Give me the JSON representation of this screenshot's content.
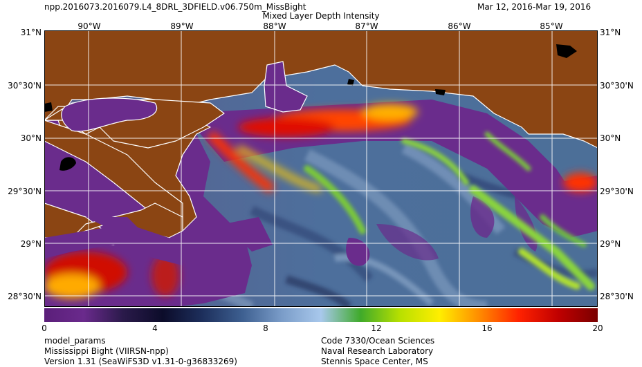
{
  "header": {
    "product": "npp.2016073.2016079.L4_8DRL_3DFIELD.v06.750m_MissBight",
    "title": "Mixed Layer Depth Intensity",
    "date_range": "Mar 12, 2016-Mar 19, 2016"
  },
  "map": {
    "longitudes": [
      "90°W",
      "89°W",
      "88°W",
      "87°W",
      "86°W",
      "85°W"
    ],
    "latitudes": [
      "31°N",
      "30°30'N",
      "30°N",
      "29°30'N",
      "29°N",
      "28°30'N"
    ],
    "colors": {
      "land": "#8b4513",
      "grid": "#ffffff",
      "coast": "#ffffff",
      "lake": "#000000"
    }
  },
  "colorbar": {
    "ticks": [
      "0",
      "4",
      "8",
      "12",
      "16",
      "20"
    ],
    "min": 0,
    "max": 20,
    "stops": [
      "#5b1f7a",
      "#6a2a8c",
      "#2a1a4a",
      "#0c0c2a",
      "#1d2f5c",
      "#3d5f90",
      "#7a9cc8",
      "#a8c8ec",
      "#3faa2a",
      "#b8e000",
      "#ffee00",
      "#ff8c00",
      "#ff2200",
      "#c00000",
      "#7a0000"
    ]
  },
  "footer": {
    "left": [
      "model_params",
      "Mississippi Bight (VIIRSN-npp)",
      "Version 1.31 (SeaWiFS3D v1.31-0-g36833269)"
    ],
    "right": [
      "Code 7330/Ocean Sciences",
      "Naval Research Laboratory",
      "Stennis Space Center, MS"
    ]
  }
}
